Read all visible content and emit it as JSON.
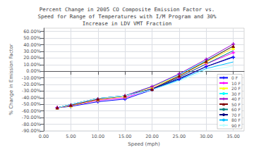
{
  "chart_data": {
    "type": "line",
    "title": "Percent Change in 2005 CO Composite Emission Factor vs.\nSpeed for Range of Temperatures with I/M Program and 30%\nIncrease in LDV VMT Fraction",
    "xlabel": "Speed (mph)",
    "ylabel": "% Change in Emission Factor",
    "x": [
      2.5,
      5.0,
      10.0,
      15.0,
      20.0,
      25.0,
      30.0,
      35.0
    ],
    "series": [
      {
        "name": "0 F",
        "color": "#0000FF",
        "marker": "plus",
        "values": [
          -0.55,
          -0.53,
          -0.46,
          -0.42,
          -0.28,
          -0.12,
          0.07,
          0.21
        ]
      },
      {
        "name": "10 F",
        "color": "#FF00FF",
        "marker": "plus",
        "values": [
          -0.55,
          -0.52,
          -0.44,
          -0.4,
          -0.26,
          -0.09,
          0.11,
          0.28
        ]
      },
      {
        "name": "20 F",
        "color": "#FFFF00",
        "marker": "triangle",
        "values": [
          -0.55,
          -0.52,
          -0.43,
          -0.38,
          -0.24,
          -0.07,
          0.14,
          0.35
        ]
      },
      {
        "name": "30 F",
        "color": "#00FFFF",
        "marker": "none",
        "values": [
          -0.55,
          -0.51,
          -0.42,
          -0.37,
          -0.23,
          -0.05,
          0.16,
          0.38
        ]
      },
      {
        "name": "40 F",
        "color": "#9900CC",
        "marker": "plus",
        "values": [
          -0.55,
          -0.51,
          -0.42,
          -0.37,
          -0.23,
          -0.04,
          0.18,
          0.41
        ]
      },
      {
        "name": "50 F",
        "color": "#800000",
        "marker": "triangle",
        "values": [
          -0.55,
          -0.51,
          -0.42,
          -0.37,
          -0.27,
          -0.07,
          0.15,
          0.38
        ]
      },
      {
        "name": "60 F",
        "color": "#008080",
        "marker": "none",
        "values": [
          -0.55,
          -0.5,
          -0.41,
          -0.37,
          -0.27,
          -0.09,
          0.11,
          0.31
        ]
      },
      {
        "name": "70 F",
        "color": "#000080",
        "marker": "none",
        "values": [
          -0.55,
          -0.5,
          -0.41,
          -0.37,
          -0.27,
          -0.11,
          0.07,
          0.22
        ]
      },
      {
        "name": "80 F",
        "color": "#00BFFF",
        "marker": "none",
        "values": [
          -0.55,
          -0.5,
          -0.41,
          -0.37,
          -0.28,
          -0.13,
          0.04,
          0.14
        ]
      },
      {
        "name": "90 F",
        "color": "#C0FFFF",
        "marker": "none",
        "values": [
          -0.55,
          -0.5,
          -0.41,
          -0.37,
          -0.28,
          -0.15,
          0.01,
          0.08
        ]
      }
    ],
    "xlim": [
      0.0,
      37.0
    ],
    "xticks": [
      {
        "value": 0.0,
        "label": "0.00"
      },
      {
        "value": 5.0,
        "label": "5.00"
      },
      {
        "value": 10.0,
        "label": "10.00"
      },
      {
        "value": 15.0,
        "label": "15.00"
      },
      {
        "value": 20.0,
        "label": "20.00"
      },
      {
        "value": 25.0,
        "label": "25.00"
      },
      {
        "value": 30.0,
        "label": "30.00"
      },
      {
        "value": 35.0,
        "label": "35.00"
      }
    ],
    "ylim": [
      -0.9,
      0.65
    ],
    "yticks": [
      {
        "value": -0.9,
        "label": "-90.00%"
      },
      {
        "value": -0.8,
        "label": "-80.00%"
      },
      {
        "value": -0.7,
        "label": "-70.00%"
      },
      {
        "value": -0.6,
        "label": "-60.00%"
      },
      {
        "value": -0.5,
        "label": "-50.00%"
      },
      {
        "value": -0.4,
        "label": "-40.00%"
      },
      {
        "value": -0.3,
        "label": "-30.00%"
      },
      {
        "value": -0.2,
        "label": "-20.00%"
      },
      {
        "value": -0.1,
        "label": "-10.00%"
      },
      {
        "value": 0.0,
        "label": "0.00%"
      },
      {
        "value": 0.1,
        "label": "10.00%"
      },
      {
        "value": 0.2,
        "label": "20.00%"
      },
      {
        "value": 0.3,
        "label": "30.00%"
      },
      {
        "value": 0.4,
        "label": "40.00%"
      },
      {
        "value": 0.5,
        "label": "50.00%"
      },
      {
        "value": 0.6,
        "label": "60.00%"
      }
    ],
    "grid": true,
    "legend": "lower right"
  }
}
